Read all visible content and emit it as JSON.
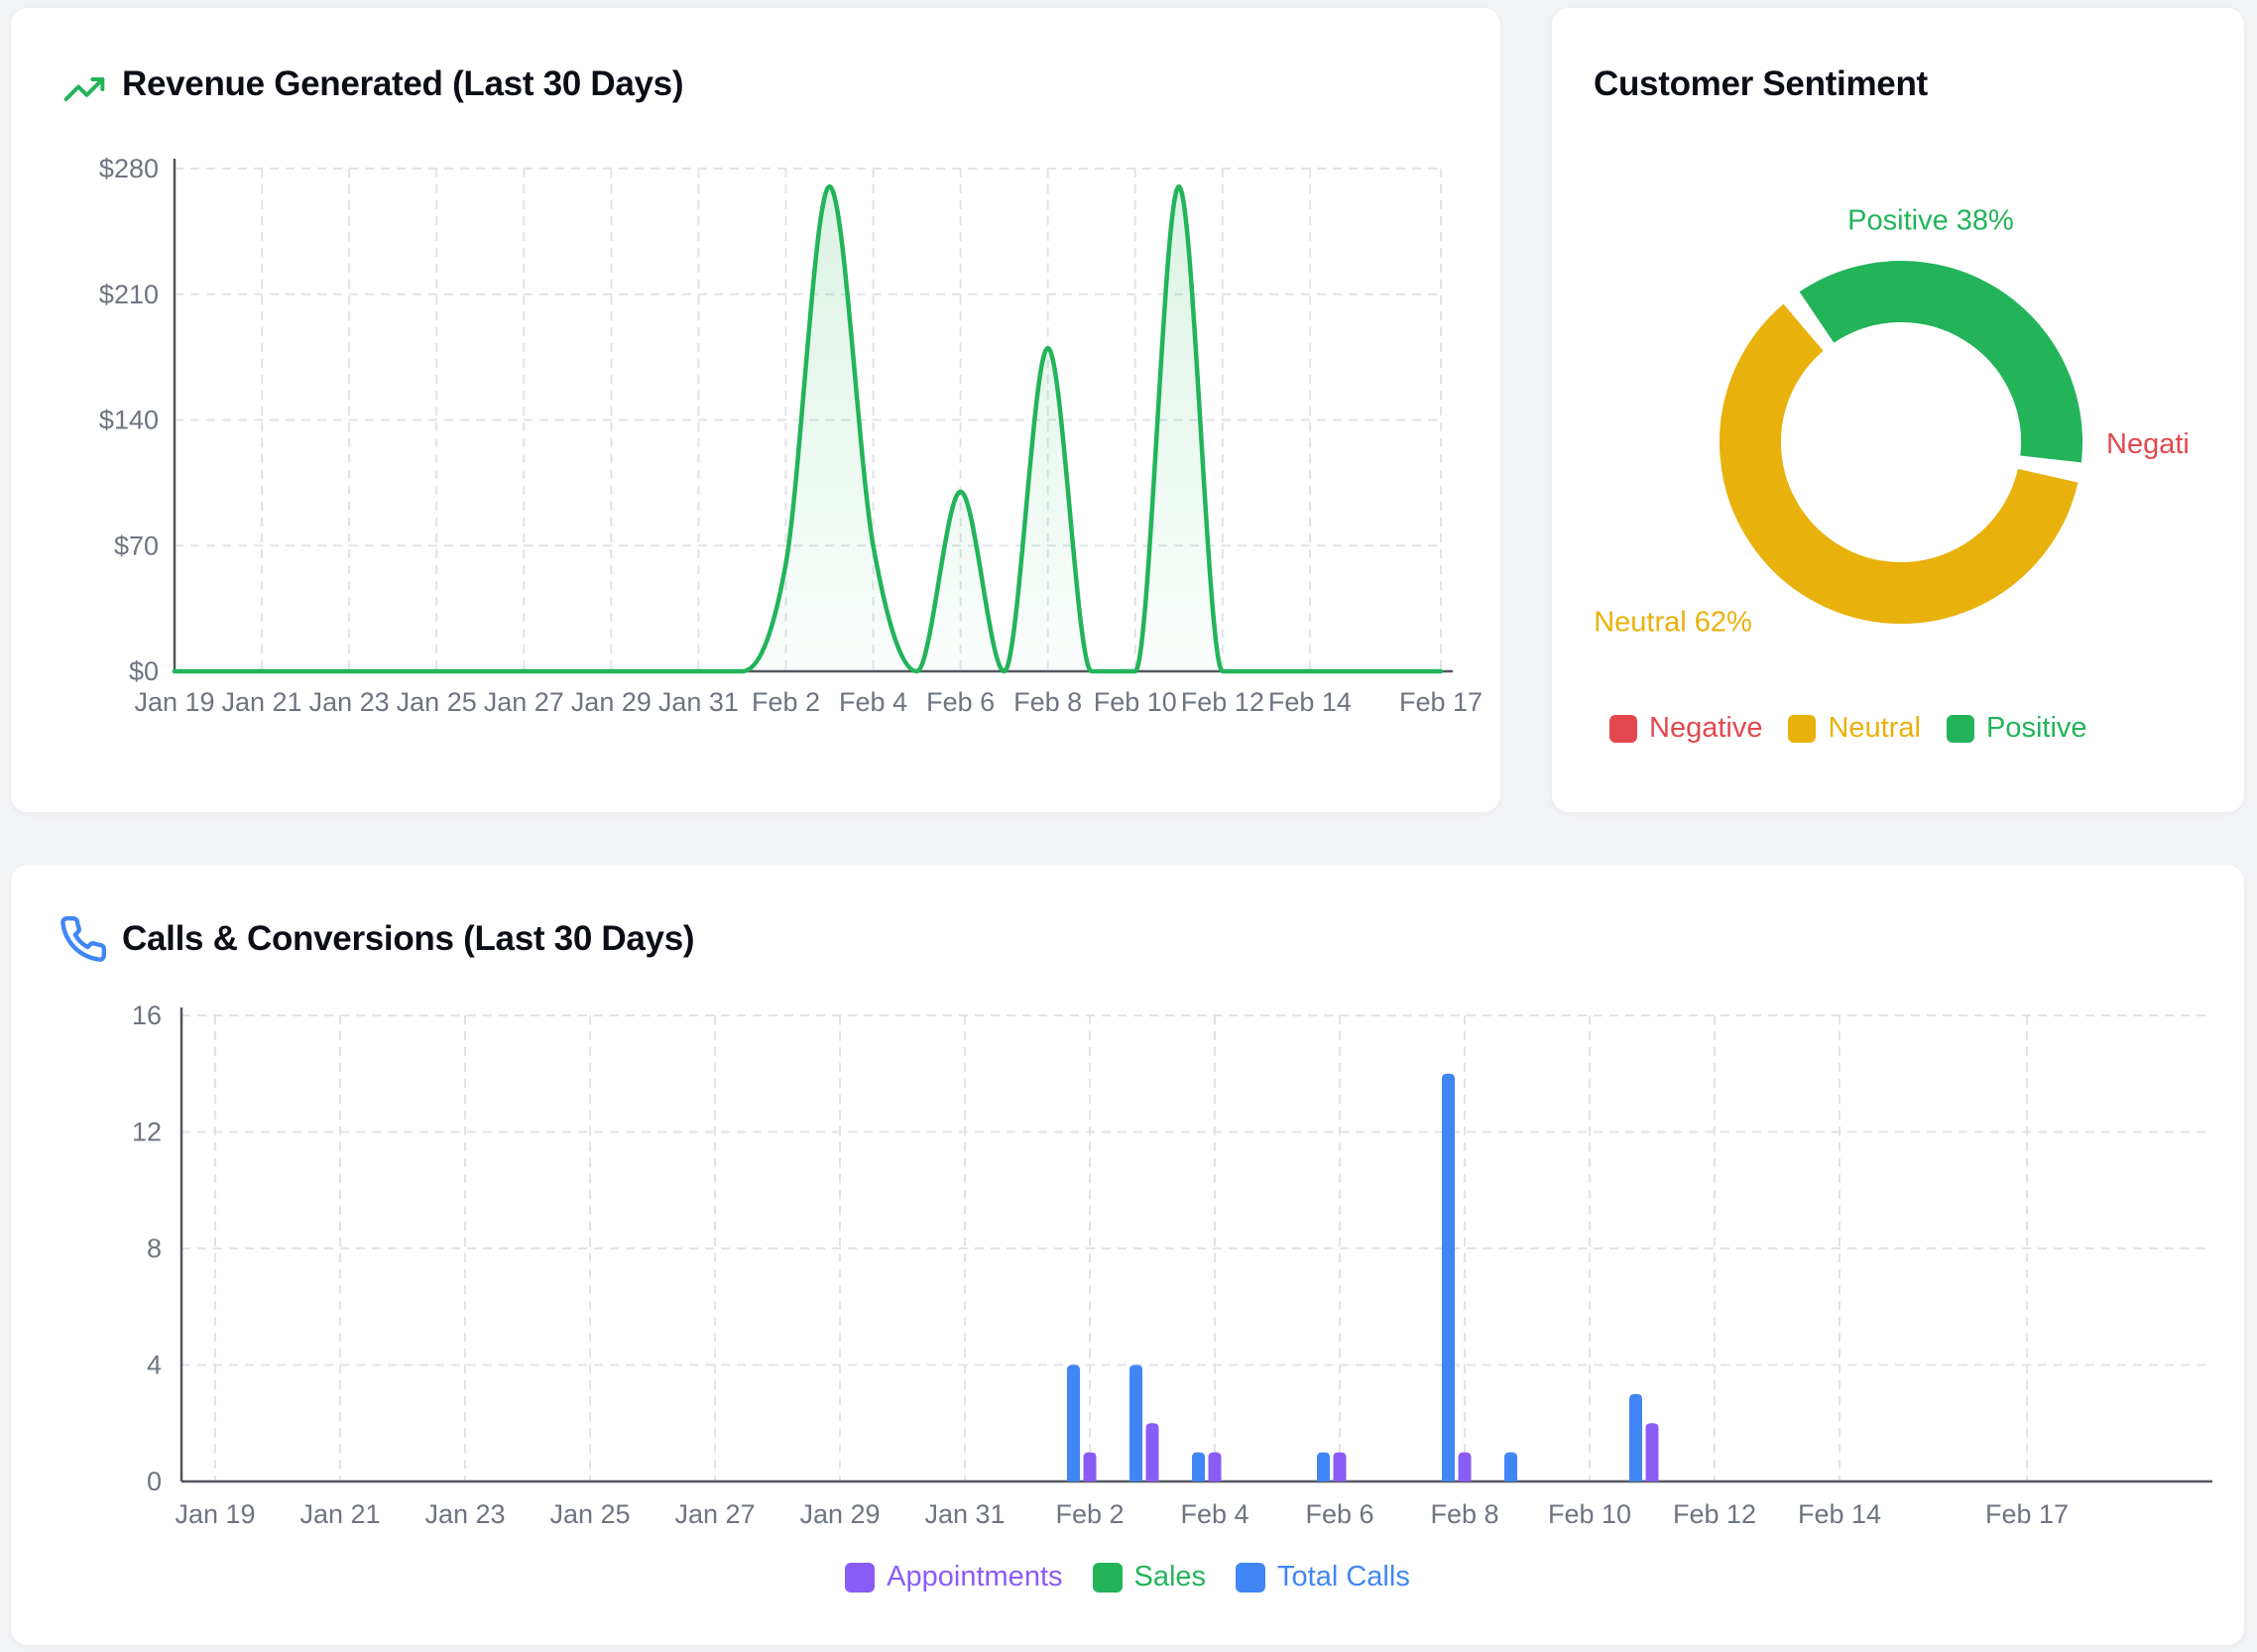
{
  "colors": {
    "green": "#23b45a",
    "yellow": "#e9b10c",
    "red": "#e2484e",
    "blue": "#4186f5",
    "purple": "#8a5cf6",
    "title_text": "#0c0e16",
    "axis_text": "#6e7480",
    "grid_line": "#e1e3e8",
    "axis_line": "#54575e",
    "card_bg": "#ffffff",
    "page_bg": "#f2f3f5"
  },
  "revenue": {
    "title": "Revenue Generated (Last 30 Days)",
    "icon": "trending-up-icon"
  },
  "sentiment": {
    "title": "Customer Sentiment",
    "callout_positive": "Positive 38%",
    "callout_neutral": "Neutral 62%",
    "callout_negative": "Negati",
    "legend": [
      {
        "label": "Negative",
        "color": "#e2484e"
      },
      {
        "label": "Neutral",
        "color": "#e9b10c"
      },
      {
        "label": "Positive",
        "color": "#23b45a"
      }
    ]
  },
  "calls": {
    "title": "Calls & Conversions (Last 30 Days)",
    "icon": "phone-icon",
    "legend": [
      {
        "label": "Appointments",
        "color": "#8a5cf6"
      },
      {
        "label": "Sales",
        "color": "#23b45a"
      },
      {
        "label": "Total Calls",
        "color": "#4186f5"
      }
    ]
  },
  "chart_data": [
    {
      "type": "area",
      "title": "Revenue Generated (Last 30 Days)",
      "x": [
        "Jan 19",
        "Jan 20",
        "Jan 21",
        "Jan 22",
        "Jan 23",
        "Jan 24",
        "Jan 25",
        "Jan 26",
        "Jan 27",
        "Jan 28",
        "Jan 29",
        "Jan 30",
        "Jan 31",
        "Feb 1",
        "Feb 2",
        "Feb 3",
        "Feb 4",
        "Feb 5",
        "Feb 6",
        "Feb 7",
        "Feb 8",
        "Feb 9",
        "Feb 10",
        "Feb 11",
        "Feb 12",
        "Feb 13",
        "Feb 14",
        "Feb 15",
        "Feb 16",
        "Feb 17"
      ],
      "values": [
        0,
        0,
        0,
        0,
        0,
        0,
        0,
        0,
        0,
        0,
        0,
        0,
        0,
        0,
        60,
        270,
        70,
        0,
        100,
        0,
        180,
        0,
        0,
        270,
        0,
        0,
        0,
        0,
        0,
        0
      ],
      "color": "#23b45a",
      "ylim": [
        0,
        280
      ],
      "ytick_values": [
        0,
        70,
        140,
        210,
        280
      ],
      "ytick_labels": [
        "$0",
        "$70",
        "$140",
        "$210",
        "$280"
      ],
      "tick_indexes": [
        0,
        2,
        4,
        6,
        8,
        10,
        12,
        14,
        16,
        18,
        20,
        22,
        24,
        26,
        29
      ],
      "tick_labels": [
        "Jan 19",
        "Jan 21",
        "Jan 23",
        "Jan 25",
        "Jan 27",
        "Jan 29",
        "Jan 31",
        "Feb 2",
        "Feb 4",
        "Feb 6",
        "Feb 8",
        "Feb 10",
        "Feb 12",
        "Feb 14",
        "Feb 17"
      ],
      "grid": true,
      "legend_position": "none",
      "line_smoothing": "monotone-cubic"
    },
    {
      "type": "pie",
      "subtype": "donut",
      "title": "Customer Sentiment",
      "labels": [
        "Negative",
        "Neutral",
        "Positive"
      ],
      "values": [
        0,
        62,
        38
      ],
      "slice_colors": [
        "#e2484e",
        "#e9b10c",
        "#23b45a"
      ],
      "legend_position": "bottom",
      "visible_callouts": [
        "Positive 38%",
        "Neutral 62%",
        "Negati"
      ],
      "slices": [
        {
          "label": "Positive",
          "value": 38,
          "color": "#23b45a",
          "start_angle": 322.8,
          "end_angle": 459.6
        },
        {
          "label": "Neutral",
          "value": 62,
          "color": "#e9b10c",
          "start_angle": 99.6,
          "end_angle": 322.8
        }
      ]
    },
    {
      "type": "bar",
      "title": "Calls & Conversions (Last 30 Days)",
      "categories": [
        "Jan 19",
        "Jan 20",
        "Jan 21",
        "Jan 22",
        "Jan 23",
        "Jan 24",
        "Jan 25",
        "Jan 26",
        "Jan 27",
        "Jan 28",
        "Jan 29",
        "Jan 30",
        "Jan 31",
        "Feb 1",
        "Feb 2",
        "Feb 3",
        "Feb 4",
        "Feb 5",
        "Feb 6",
        "Feb 7",
        "Feb 8",
        "Feb 9",
        "Feb 10",
        "Feb 11",
        "Feb 12",
        "Feb 13",
        "Feb 14",
        "Feb 15",
        "Feb 16",
        "Feb 17"
      ],
      "series": [
        {
          "name": "Appointments",
          "color": "#8a5cf6",
          "values": [
            0,
            0,
            0,
            0,
            0,
            0,
            0,
            0,
            0,
            0,
            0,
            0,
            0,
            0,
            1,
            2,
            1,
            0,
            1,
            0,
            1,
            0,
            0,
            2,
            0,
            0,
            0,
            0,
            0,
            0
          ]
        },
        {
          "name": "Sales",
          "color": "#23b45a",
          "values": [
            0,
            0,
            0,
            0,
            0,
            0,
            0,
            0,
            0,
            0,
            0,
            0,
            0,
            0,
            0,
            0,
            0,
            0,
            0,
            0,
            0,
            0,
            0,
            0,
            0,
            0,
            0,
            0,
            0,
            0
          ]
        },
        {
          "name": "Total Calls",
          "color": "#4186f5",
          "values": [
            0,
            0,
            0,
            0,
            0,
            0,
            0,
            0,
            0,
            0,
            0,
            0,
            0,
            0,
            4,
            4,
            1,
            0,
            1,
            0,
            14,
            1,
            0,
            3,
            0,
            0,
            0,
            0,
            0,
            0
          ]
        }
      ],
      "ylim": [
        0,
        16
      ],
      "ytick_values": [
        0,
        4,
        8,
        12,
        16
      ],
      "ytick_labels": [
        "0",
        "4",
        "8",
        "12",
        "16"
      ],
      "tick_indexes": [
        0,
        2,
        4,
        6,
        8,
        10,
        12,
        14,
        16,
        18,
        20,
        22,
        24,
        26,
        29
      ],
      "tick_labels": [
        "Jan 19",
        "Jan 21",
        "Jan 23",
        "Jan 25",
        "Jan 27",
        "Jan 29",
        "Jan 31",
        "Feb 2",
        "Feb 4",
        "Feb 6",
        "Feb 8",
        "Feb 10",
        "Feb 12",
        "Feb 14",
        "Feb 17"
      ],
      "grid": true,
      "legend_position": "bottom"
    }
  ]
}
